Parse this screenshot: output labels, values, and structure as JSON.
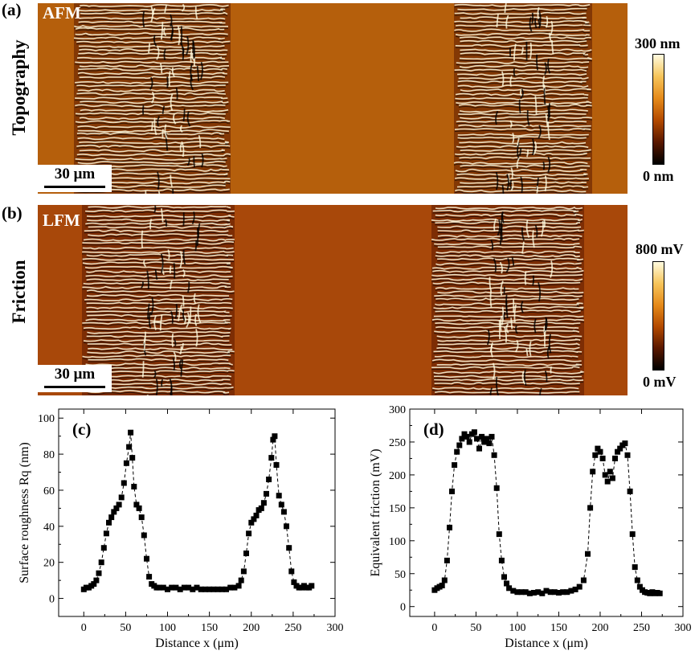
{
  "panel_a": {
    "label": "(a)",
    "title": "AFM",
    "side_label": "Topography",
    "scalebar": "30 μm",
    "colorbar_max": "300 nm",
    "colorbar_min": "0 nm",
    "colormap": [
      "#000000",
      "#5a1800",
      "#b34a00",
      "#e58a1a",
      "#f6c45a",
      "#fffbe0"
    ]
  },
  "panel_b": {
    "label": "(b)",
    "title": "LFM",
    "side_label": "Friction",
    "scalebar": "30 μm",
    "colorbar_max": "800 mV",
    "colorbar_min": "0 mV",
    "colormap": [
      "#000000",
      "#5a1800",
      "#b34a00",
      "#e58a1a",
      "#f6c45a",
      "#fffbe0"
    ]
  },
  "chart_data": [
    {
      "type": "scatter",
      "panel_label": "(c)",
      "xlabel": "Distance x (μm)",
      "ylabel": "Surface roughness Rq (nm)",
      "xlim": [
        -30,
        300
      ],
      "ylim": [
        -10,
        105
      ],
      "xticks": [
        0,
        50,
        100,
        150,
        200,
        250,
        300
      ],
      "yticks": [
        0,
        20,
        40,
        60,
        80,
        100
      ],
      "marker": "square",
      "color": "#000000",
      "x": [
        0,
        3,
        6,
        9,
        12,
        15,
        18,
        21,
        24,
        27,
        30,
        33,
        36,
        39,
        42,
        45,
        48,
        51,
        54,
        56,
        58,
        60,
        63,
        66,
        69,
        72,
        75,
        78,
        81,
        84,
        87,
        90,
        95,
        100,
        105,
        110,
        115,
        120,
        125,
        130,
        135,
        140,
        145,
        150,
        155,
        160,
        165,
        170,
        175,
        180,
        185,
        188,
        191,
        194,
        197,
        200,
        203,
        206,
        209,
        212,
        215,
        218,
        221,
        224,
        226,
        228,
        230,
        233,
        236,
        239,
        242,
        245,
        248,
        251,
        254,
        257,
        260,
        263,
        266,
        269,
        272
      ],
      "y": [
        5,
        6,
        6,
        7,
        8,
        10,
        14,
        20,
        28,
        36,
        42,
        45,
        48,
        50,
        52,
        56,
        64,
        75,
        84,
        92,
        78,
        62,
        52,
        50,
        45,
        35,
        22,
        12,
        8,
        7,
        6,
        6,
        6,
        5,
        6,
        6,
        5,
        6,
        6,
        5,
        6,
        5,
        5,
        5,
        5,
        5,
        5,
        5,
        6,
        6,
        7,
        10,
        15,
        25,
        36,
        42,
        44,
        46,
        49,
        50,
        53,
        58,
        66,
        78,
        88,
        90,
        74,
        57,
        52,
        48,
        40,
        28,
        15,
        9,
        7,
        6,
        6,
        7,
        6,
        6,
        7
      ]
    },
    {
      "type": "scatter",
      "panel_label": "(d)",
      "xlabel": "Distance x (μm)",
      "ylabel": "Equivalent friction (mV)",
      "xlim": [
        -30,
        300
      ],
      "ylim": [
        -15,
        300
      ],
      "xticks": [
        0,
        50,
        100,
        150,
        200,
        250,
        300
      ],
      "yticks": [
        0,
        50,
        100,
        150,
        200,
        250,
        300
      ],
      "marker": "square",
      "color": "#000000",
      "x": [
        0,
        3,
        6,
        9,
        12,
        15,
        18,
        21,
        24,
        27,
        30,
        33,
        36,
        39,
        42,
        45,
        48,
        51,
        54,
        57,
        60,
        63,
        66,
        69,
        72,
        75,
        78,
        81,
        84,
        87,
        90,
        95,
        100,
        105,
        110,
        115,
        120,
        125,
        130,
        135,
        140,
        145,
        150,
        155,
        160,
        165,
        170,
        175,
        180,
        185,
        188,
        191,
        194,
        197,
        200,
        203,
        206,
        209,
        212,
        215,
        218,
        221,
        224,
        227,
        230,
        233,
        236,
        239,
        242,
        245,
        248,
        251,
        254,
        257,
        260,
        263,
        266,
        269,
        272
      ],
      "y": [
        25,
        28,
        30,
        32,
        40,
        70,
        120,
        175,
        215,
        235,
        245,
        255,
        262,
        258,
        250,
        262,
        265,
        255,
        240,
        258,
        250,
        255,
        248,
        258,
        230,
        180,
        110,
        70,
        45,
        35,
        28,
        24,
        22,
        22,
        22,
        20,
        21,
        22,
        20,
        24,
        22,
        22,
        21,
        22,
        22,
        24,
        26,
        30,
        40,
        80,
        150,
        205,
        230,
        240,
        235,
        225,
        200,
        190,
        205,
        195,
        225,
        235,
        240,
        245,
        248,
        230,
        175,
        110,
        60,
        40,
        30,
        25,
        22,
        21,
        20,
        22,
        20,
        21,
        20
      ]
    }
  ]
}
